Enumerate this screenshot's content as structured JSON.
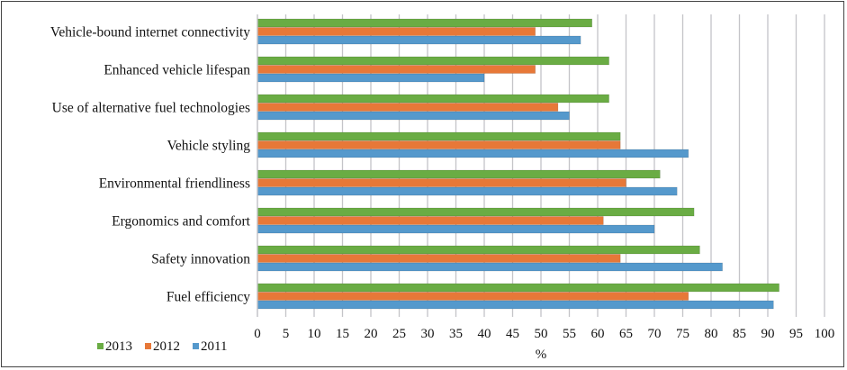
{
  "chart_data": {
    "type": "bar",
    "orientation": "horizontal",
    "title": "",
    "xlabel": "%",
    "ylabel": "",
    "xlim": [
      0,
      100
    ],
    "xticks": [
      "0",
      "5",
      "10",
      "15",
      "20",
      "25",
      "30",
      "35",
      "40",
      "45",
      "50",
      "55",
      "60",
      "65",
      "70",
      "75",
      "80",
      "85",
      "90",
      "95",
      "100"
    ],
    "grid": true,
    "legend_position": "bottom-left",
    "categories": [
      "Vehicle-bound internet connectivity",
      "Enhanced vehicle lifespan",
      "Use of alternative fuel technologies",
      "Vehicle styling",
      "Environmental friendliness",
      "Ergonomics and comfort",
      "Safety innovation",
      "Fuel efficiency"
    ],
    "series": [
      {
        "name": "2013",
        "color": "#6aac44",
        "values": [
          59,
          62,
          62,
          64,
          71,
          77,
          78,
          92
        ]
      },
      {
        "name": "2012",
        "color": "#e77838",
        "values": [
          49,
          49,
          53,
          64,
          65,
          61,
          64,
          76
        ]
      },
      {
        "name": "2011",
        "color": "#5599cc",
        "values": [
          57,
          40,
          55,
          76,
          74,
          70,
          82,
          91
        ]
      }
    ]
  }
}
